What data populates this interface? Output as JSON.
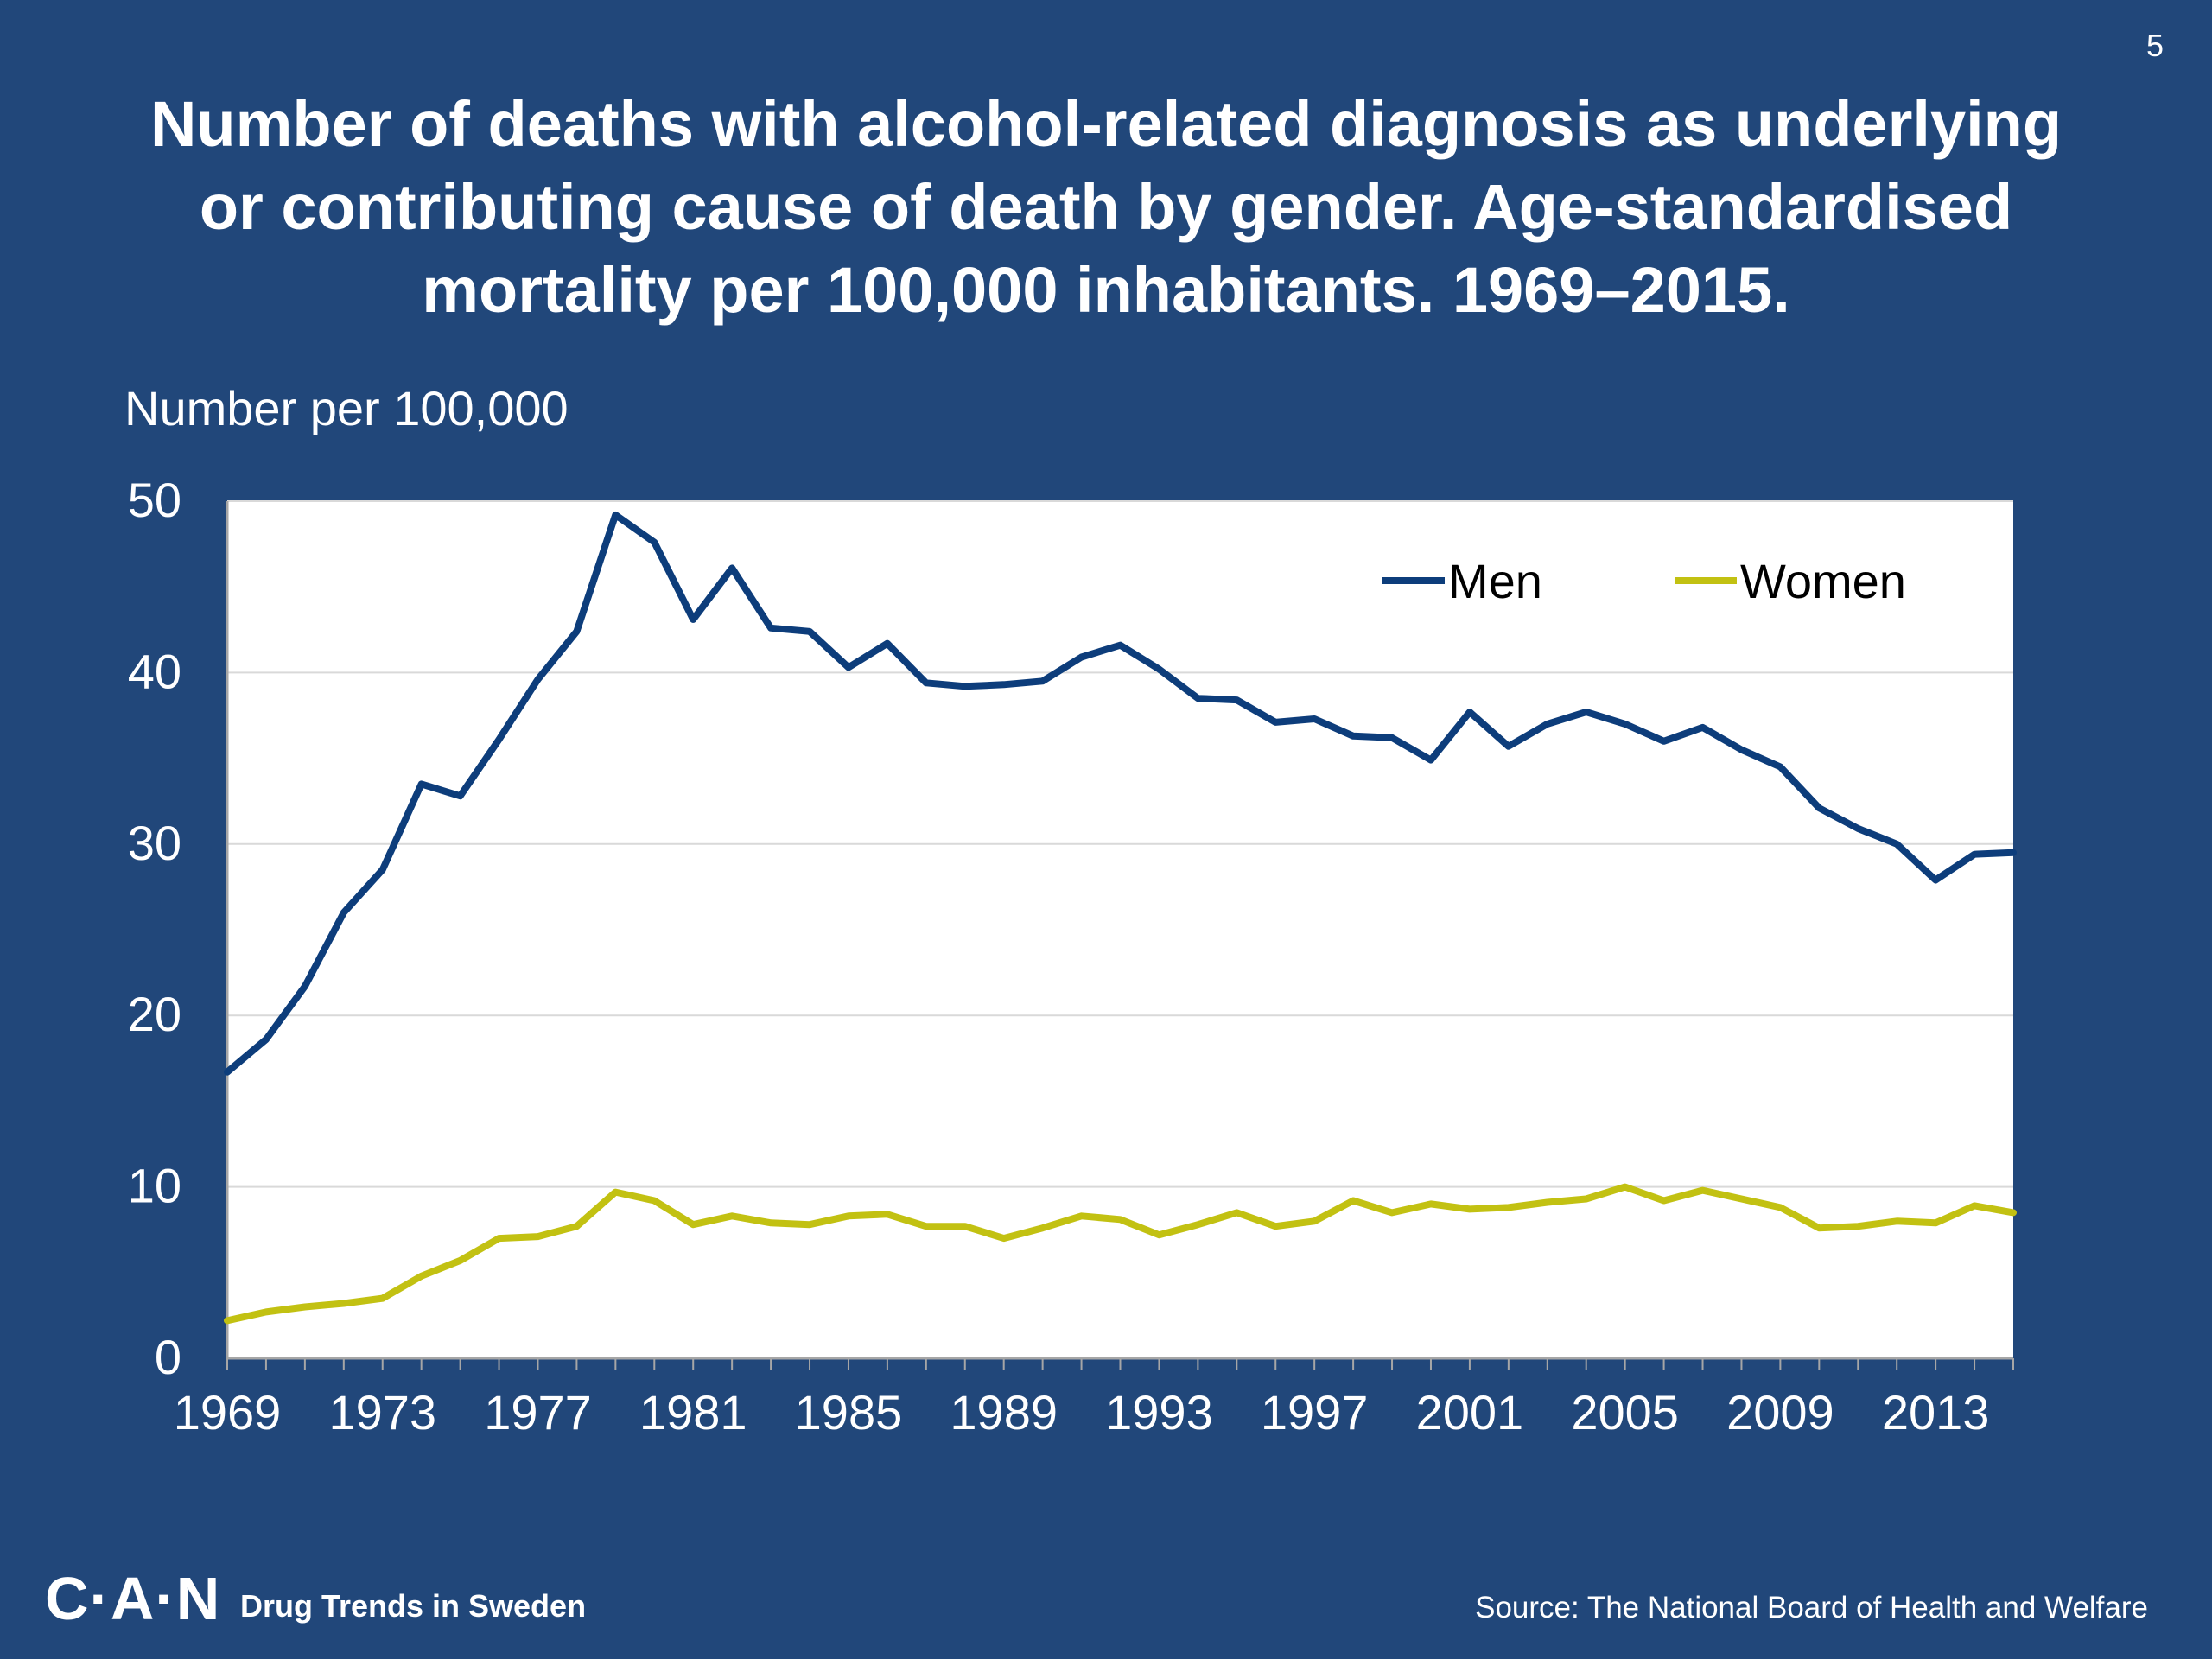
{
  "slide": {
    "number": "5"
  },
  "header": {
    "title_lines": [
      "Number of deaths with alcohol-related diagnosis as underlying",
      "or contributing cause of death by gender. Age-standardised",
      "mortality per 100,000 inhabitants. 1969–2015."
    ]
  },
  "footer": {
    "logo_text": "C·A·N",
    "tagline": "Drug Trends in Sweden",
    "source": "Source: The National Board of Health and Welfare"
  },
  "colors": {
    "background": "#21477a",
    "plot_background": "#ffffff",
    "men": "#0d3d7b",
    "women": "#c2c112",
    "gridline": "#d9d9d9"
  },
  "chart_data": {
    "type": "line",
    "ylabel": "Number per 100,000",
    "ylim": [
      0,
      50
    ],
    "yticks": [
      0,
      10,
      20,
      30,
      40,
      50
    ],
    "xlim": [
      1969,
      2015
    ],
    "xticks": [
      1969,
      1973,
      1977,
      1981,
      1985,
      1989,
      1993,
      1997,
      2001,
      2005,
      2009,
      2013
    ],
    "grid": true,
    "legend_position": "top-right",
    "x": [
      1969,
      1970,
      1971,
      1972,
      1973,
      1974,
      1975,
      1976,
      1977,
      1978,
      1979,
      1980,
      1981,
      1982,
      1983,
      1984,
      1985,
      1986,
      1987,
      1988,
      1989,
      1990,
      1991,
      1992,
      1993,
      1994,
      1995,
      1996,
      1997,
      1998,
      1999,
      2000,
      2001,
      2002,
      2003,
      2004,
      2005,
      2006,
      2007,
      2008,
      2009,
      2010,
      2011,
      2012,
      2013,
      2014,
      2015
    ],
    "series": [
      {
        "name": "Men",
        "color": "#0d3d7b",
        "values": [
          16.7,
          18.6,
          21.7,
          26.0,
          28.5,
          33.5,
          32.8,
          36.1,
          39.6,
          42.4,
          49.2,
          47.6,
          43.1,
          46.1,
          42.6,
          42.4,
          40.3,
          41.7,
          39.4,
          39.2,
          39.3,
          39.5,
          40.9,
          41.6,
          40.2,
          38.5,
          38.4,
          37.1,
          37.3,
          36.3,
          36.2,
          34.9,
          37.7,
          35.7,
          37.0,
          37.7,
          37.0,
          36.0,
          36.8,
          35.5,
          34.5,
          32.1,
          30.9,
          30.0,
          27.9,
          29.4,
          29.5
        ]
      },
      {
        "name": "Women",
        "color": "#c2c112",
        "values": [
          2.2,
          2.7,
          3.0,
          3.2,
          3.5,
          4.8,
          5.7,
          7.0,
          7.1,
          7.7,
          9.7,
          9.2,
          7.8,
          8.3,
          7.9,
          7.8,
          8.3,
          8.4,
          7.7,
          7.7,
          7.0,
          7.6,
          8.3,
          8.1,
          7.2,
          7.8,
          8.5,
          7.7,
          8.0,
          9.2,
          8.5,
          9.0,
          8.7,
          8.8,
          9.1,
          9.3,
          10.0,
          9.2,
          9.8,
          9.3,
          8.8,
          7.6,
          7.7,
          8.0,
          7.9,
          8.9,
          8.5
        ]
      }
    ]
  }
}
